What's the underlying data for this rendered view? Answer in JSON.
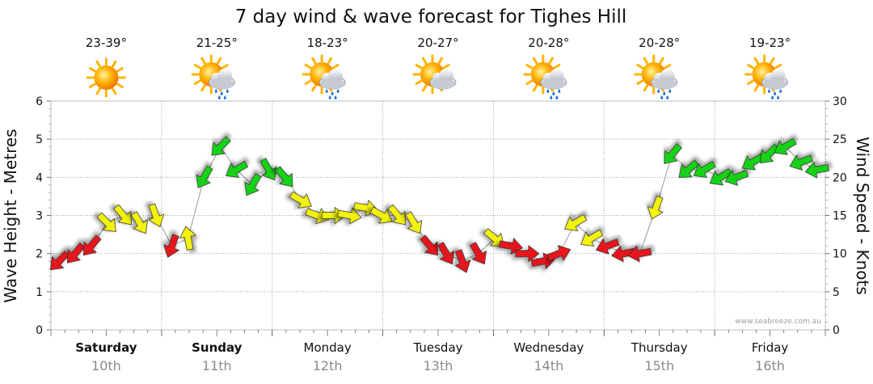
{
  "chart_data": {
    "type": "line",
    "title": "7 day wind & wave forecast for Tighes Hill",
    "y_left": {
      "label": "Wave Height - Metres",
      "range": [
        0,
        6
      ],
      "ticks": [
        "0",
        "1",
        "2",
        "3",
        "4",
        "5",
        "6"
      ]
    },
    "y_right": {
      "label": "Wind Speed - Knots",
      "range": [
        0,
        30
      ],
      "ticks": [
        "0",
        "5",
        "10",
        "15",
        "20",
        "25",
        "30"
      ]
    },
    "days": [
      {
        "name": "Saturday",
        "date": "10th",
        "bold": true,
        "temp": "23-39°",
        "weather": "sunny-icon"
      },
      {
        "name": "Sunday",
        "date": "11th",
        "bold": true,
        "temp": "21-25°",
        "weather": "sun-rain-icon"
      },
      {
        "name": "Monday",
        "date": "12th",
        "bold": false,
        "temp": "18-23°",
        "weather": "sun-rain-icon"
      },
      {
        "name": "Tuesday",
        "date": "13th",
        "bold": false,
        "temp": "20-27°",
        "weather": "partly-cloudy-icon"
      },
      {
        "name": "Wednesday",
        "date": "14th",
        "bold": false,
        "temp": "20-28°",
        "weather": "sun-rain-icon"
      },
      {
        "name": "Thursday",
        "date": "15th",
        "bold": false,
        "temp": "20-28°",
        "weather": "sun-rain-icon"
      },
      {
        "name": "Friday",
        "date": "16th",
        "bold": false,
        "temp": "19-23°",
        "weather": "sun-rain-icon"
      }
    ],
    "wind_series": {
      "unit": "knots",
      "hours_per_point": 3,
      "speeds": [
        9,
        10,
        11,
        14,
        15,
        14,
        15,
        11,
        12,
        20,
        24,
        21,
        19,
        21,
        20,
        17,
        15,
        15,
        15,
        16,
        15,
        15,
        14,
        11,
        10,
        9,
        10,
        12,
        11,
        10,
        9,
        10,
        14,
        12,
        11,
        10,
        10,
        16,
        23,
        21,
        21,
        20,
        20,
        22,
        23,
        24,
        22,
        21
      ],
      "direction_deg": [
        45,
        40,
        40,
        315,
        320,
        330,
        340,
        20,
        170,
        30,
        45,
        60,
        30,
        330,
        320,
        300,
        290,
        270,
        280,
        280,
        300,
        320,
        330,
        320,
        330,
        340,
        330,
        310,
        280,
        270,
        260,
        250,
        60,
        60,
        70,
        80,
        80,
        20,
        40,
        50,
        60,
        60,
        70,
        60,
        45,
        60,
        70,
        80
      ],
      "colors": {
        "light": "#e8141e",
        "moderate": "#f2f20a",
        "strong": "#14d214"
      },
      "thresholds_knots": [
        12,
        18
      ]
    },
    "grid": true
  },
  "watermark": "www.seabreeze.com.au"
}
